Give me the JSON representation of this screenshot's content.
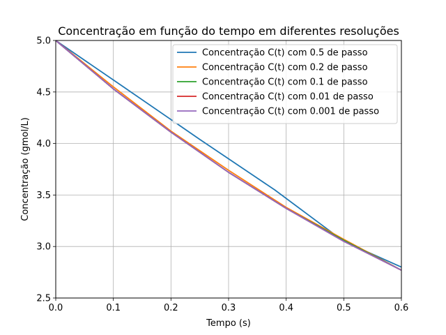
{
  "chart_data": {
    "type": "line",
    "title": "Concentração em função do tempo em diferentes resoluções",
    "xlabel": "Tempo (s)",
    "ylabel": "Concentração (gmol/L)",
    "xlim": [
      0.0,
      0.6
    ],
    "ylim": [
      2.5,
      5.0
    ],
    "xticks": [
      "0.0",
      "0.1",
      "0.2",
      "0.3",
      "0.4",
      "0.5",
      "0.6"
    ],
    "yticks": [
      "2.5",
      "3.0",
      "3.5",
      "4.0",
      "4.5",
      "5.0"
    ],
    "grid": true,
    "legend_position": "top-right",
    "series": [
      {
        "name": "Concentração C(t) com 0.5 de passo",
        "color": "#1f77b4",
        "x": [
          0.0,
          0.12,
          0.25,
          0.38,
          0.5,
          0.6
        ],
        "y": [
          5.0,
          4.54,
          4.04,
          3.55,
          3.05,
          2.8
        ]
      },
      {
        "name": "Concentração C(t) com 0.2 de passo",
        "color": "#ff7f0e",
        "x": [
          0.0,
          0.1,
          0.2,
          0.3,
          0.4,
          0.5,
          0.6
        ],
        "y": [
          5.0,
          4.55,
          4.12,
          3.74,
          3.38,
          3.07,
          2.77
        ]
      },
      {
        "name": "Concentração C(t) com 0.1 de passo",
        "color": "#2ca02c",
        "x": [
          0.0,
          0.1,
          0.2,
          0.3,
          0.4,
          0.5,
          0.6
        ],
        "y": [
          5.0,
          4.53,
          4.11,
          3.72,
          3.37,
          3.06,
          2.77
        ]
      },
      {
        "name": "Concentração C(t) com 0.01 de passo",
        "color": "#d62728",
        "x": [
          0.0,
          0.1,
          0.2,
          0.3,
          0.4,
          0.5,
          0.6
        ],
        "y": [
          5.0,
          4.53,
          4.11,
          3.72,
          3.37,
          3.05,
          2.77
        ]
      },
      {
        "name": "Concentração C(t) com 0.001 de passo",
        "color": "#9467bd",
        "x": [
          0.0,
          0.1,
          0.2,
          0.3,
          0.4,
          0.5,
          0.6
        ],
        "y": [
          5.0,
          4.53,
          4.11,
          3.72,
          3.37,
          3.05,
          2.77
        ]
      }
    ]
  }
}
